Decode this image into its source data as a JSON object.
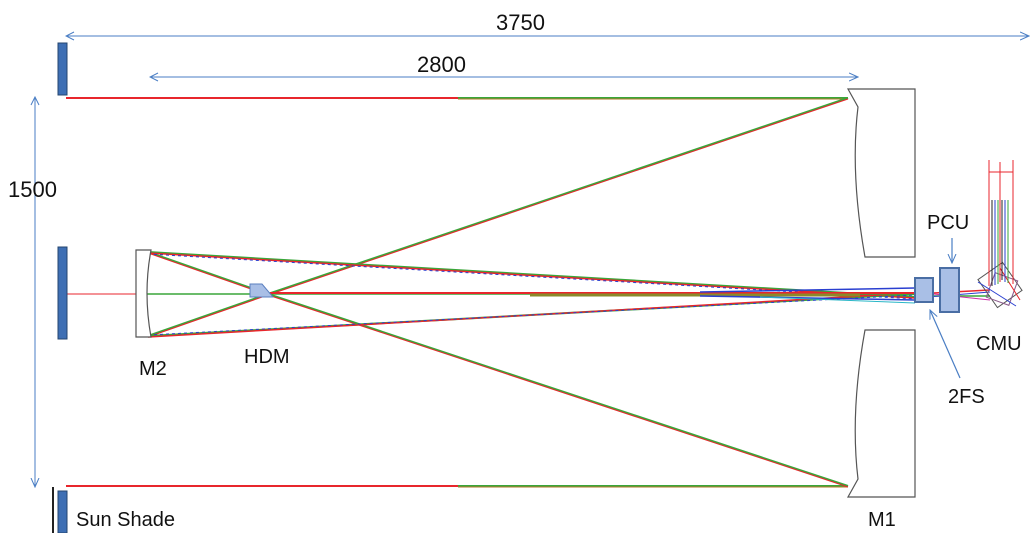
{
  "dimensions": {
    "width_total": "3750",
    "primary_secondary": "2800",
    "aperture_height": "1500"
  },
  "labels": {
    "m2": "M2",
    "hdm": "HDM",
    "pcu": "PCU",
    "cmu": "CMU",
    "twofs": "2FS",
    "m1": "M1",
    "sun_shade": "Sun Shade"
  },
  "colors": {
    "dimension_line": "#4a7ec4",
    "ray_red": "#e8262c",
    "ray_green": "#3aa63a",
    "ray_blue": "#2a3fd0",
    "ray_olive": "#8a8a2a",
    "mirror_fill": "#ffffff",
    "mirror_stroke": "#555555",
    "shade_fill": "#3e6fb4",
    "shade_stroke": "#24466f",
    "optic_fill": "#a9bfe6"
  }
}
